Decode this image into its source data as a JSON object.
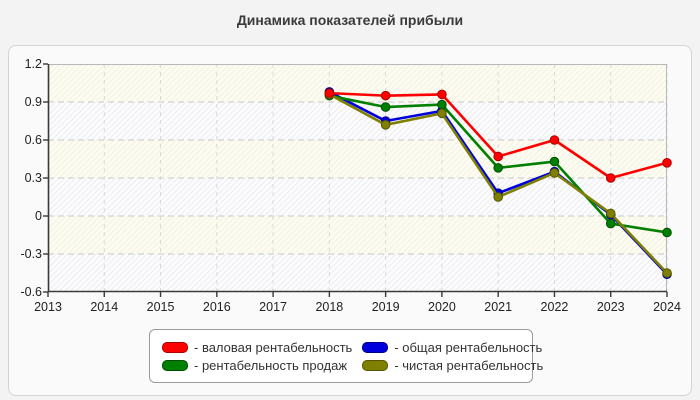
{
  "title": "Динамика показателей прибыли",
  "colors": {
    "page_background": "#f3f3f3",
    "panel_background": "#fafafa",
    "panel_border": "#d4d4d4",
    "axis_line": "#3a3a3a",
    "grid_horizontal": "#c9c9c9",
    "grid_vertical": "#d9d9d9",
    "band_cream_bg": "#fdfcf2",
    "band_cream_hatch": "#f0edd8",
    "band_blue_bg": "#fcfcfd",
    "band_blue_hatch": "#e4e6ee"
  },
  "chart_data": {
    "type": "line",
    "title": "Динамика показателей прибыли",
    "xlabel": "",
    "ylabel": "",
    "x_axis_years": [
      2013,
      2014,
      2015,
      2016,
      2017,
      2018,
      2019,
      2020,
      2021,
      2022,
      2023,
      2024
    ],
    "x_tick_labels": [
      "2013",
      "2014",
      "2015",
      "2016",
      "2017",
      "2018",
      "2019",
      "2020",
      "2021",
      "2022",
      "2023",
      "2024"
    ],
    "y_tick_labels": [
      "1.2",
      "0.9",
      "0.6",
      "0.3",
      "0",
      "-0.3",
      "-0.6"
    ],
    "y_ticks": [
      1.2,
      0.9,
      0.6,
      0.3,
      0,
      -0.3,
      -0.6
    ],
    "ylim": [
      -0.6,
      1.2
    ],
    "xlim": [
      2013,
      2024
    ],
    "grid": true,
    "legend_position": "bottom",
    "x": [
      2018,
      2019,
      2020,
      2021,
      2022,
      2023,
      2024
    ],
    "series": [
      {
        "name": "общая рентабельность",
        "color": "#0000dd",
        "edge": "#000088",
        "values": [
          0.98,
          0.75,
          0.83,
          0.18,
          0.35,
          0.01,
          -0.46
        ]
      },
      {
        "name": "рентабельность продаж",
        "color": "#008000",
        "edge": "#004d00",
        "values": [
          0.95,
          0.86,
          0.88,
          0.38,
          0.43,
          -0.06,
          -0.13
        ]
      },
      {
        "name": "чистая рентабельность",
        "color": "#808000",
        "edge": "#565600",
        "values": [
          0.96,
          0.72,
          0.81,
          0.15,
          0.34,
          0.02,
          -0.45
        ]
      },
      {
        "name": "валовая рентабельность",
        "color": "#ff0000",
        "edge": "#aa0000",
        "values": [
          0.97,
          0.95,
          0.96,
          0.47,
          0.6,
          0.3,
          0.42
        ]
      }
    ]
  },
  "legend": {
    "items": [
      {
        "label": "- валовая рентабельность",
        "color": "#ff0000",
        "edge": "#aa0000"
      },
      {
        "label": "- общая рентабельность",
        "color": "#0000dd",
        "edge": "#000088"
      },
      {
        "label": "- рентабельность продаж",
        "color": "#008000",
        "edge": "#004d00"
      },
      {
        "label": "- чистая рентабельность",
        "color": "#808000",
        "edge": "#565600"
      }
    ]
  }
}
